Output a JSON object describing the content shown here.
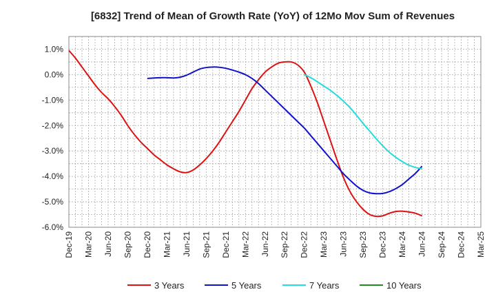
{
  "chart_data": {
    "type": "line",
    "title": "[6832]  Trend of Mean of Growth Rate (YoY) of 12Mo Mov Sum of Revenues",
    "xlabel": "",
    "ylabel": "",
    "ylim": [
      -6.0,
      1.5
    ],
    "yticks": [
      "1.0%",
      "0.0%",
      "-1.0%",
      "-2.0%",
      "-3.0%",
      "-4.0%",
      "-5.0%",
      "-6.0%"
    ],
    "ytick_values": [
      1.0,
      0.0,
      -1.0,
      -2.0,
      -3.0,
      -4.0,
      -5.0,
      -6.0
    ],
    "xticks": [
      "Dec-19",
      "Mar-20",
      "Jun-20",
      "Sep-20",
      "Dec-20",
      "Mar-21",
      "Jun-21",
      "Sep-21",
      "Dec-21",
      "Mar-22",
      "Jun-22",
      "Sep-22",
      "Dec-22",
      "Mar-23",
      "Jun-23",
      "Sep-23",
      "Dec-23",
      "Mar-24",
      "Jun-24",
      "Sep-24",
      "Dec-24",
      "Mar-25"
    ],
    "x_months_total": 63,
    "grid": true,
    "legend_position": "bottom",
    "series": [
      {
        "name": "3 Years",
        "color": "#dd1111",
        "points": [
          [
            0,
            0.95
          ],
          [
            1,
            0.65
          ],
          [
            2,
            0.3
          ],
          [
            3,
            -0.05
          ],
          [
            4,
            -0.4
          ],
          [
            5,
            -0.7
          ],
          [
            6,
            -0.95
          ],
          [
            7,
            -1.25
          ],
          [
            8,
            -1.6
          ],
          [
            9,
            -2.0
          ],
          [
            10,
            -2.35
          ],
          [
            11,
            -2.65
          ],
          [
            12,
            -2.9
          ],
          [
            13,
            -3.15
          ],
          [
            14,
            -3.35
          ],
          [
            15,
            -3.55
          ],
          [
            16,
            -3.7
          ],
          [
            17,
            -3.82
          ],
          [
            18,
            -3.85
          ],
          [
            19,
            -3.75
          ],
          [
            20,
            -3.55
          ],
          [
            21,
            -3.3
          ],
          [
            22,
            -3.0
          ],
          [
            23,
            -2.65
          ],
          [
            24,
            -2.25
          ],
          [
            25,
            -1.85
          ],
          [
            26,
            -1.45
          ],
          [
            27,
            -1.0
          ],
          [
            28,
            -0.55
          ],
          [
            29,
            -0.2
          ],
          [
            30,
            0.1
          ],
          [
            31,
            0.3
          ],
          [
            32,
            0.45
          ],
          [
            33,
            0.5
          ],
          [
            34,
            0.5
          ],
          [
            35,
            0.38
          ],
          [
            36,
            0.1
          ],
          [
            37,
            -0.45
          ],
          [
            38,
            -1.1
          ],
          [
            39,
            -1.85
          ],
          [
            40,
            -2.6
          ],
          [
            41,
            -3.35
          ],
          [
            42,
            -4.05
          ],
          [
            43,
            -4.6
          ],
          [
            44,
            -5.0
          ],
          [
            45,
            -5.3
          ],
          [
            46,
            -5.5
          ],
          [
            47,
            -5.57
          ],
          [
            48,
            -5.55
          ],
          [
            49,
            -5.45
          ],
          [
            50,
            -5.38
          ],
          [
            51,
            -5.37
          ],
          [
            52,
            -5.4
          ],
          [
            53,
            -5.45
          ],
          [
            54,
            -5.55
          ]
        ]
      },
      {
        "name": "5 Years",
        "color": "#1111cc",
        "points": [
          [
            12,
            -0.15
          ],
          [
            13,
            -0.13
          ],
          [
            14,
            -0.12
          ],
          [
            15,
            -0.12
          ],
          [
            16,
            -0.13
          ],
          [
            17,
            -0.1
          ],
          [
            18,
            -0.02
          ],
          [
            19,
            0.1
          ],
          [
            20,
            0.22
          ],
          [
            21,
            0.28
          ],
          [
            22,
            0.3
          ],
          [
            23,
            0.29
          ],
          [
            24,
            0.25
          ],
          [
            25,
            0.18
          ],
          [
            26,
            0.1
          ],
          [
            27,
            0.0
          ],
          [
            28,
            -0.15
          ],
          [
            29,
            -0.35
          ],
          [
            30,
            -0.6
          ],
          [
            31,
            -0.85
          ],
          [
            32,
            -1.1
          ],
          [
            33,
            -1.35
          ],
          [
            34,
            -1.6
          ],
          [
            35,
            -1.85
          ],
          [
            36,
            -2.1
          ],
          [
            37,
            -2.4
          ],
          [
            38,
            -2.7
          ],
          [
            39,
            -3.0
          ],
          [
            40,
            -3.3
          ],
          [
            41,
            -3.6
          ],
          [
            42,
            -3.9
          ],
          [
            43,
            -4.15
          ],
          [
            44,
            -4.38
          ],
          [
            45,
            -4.55
          ],
          [
            46,
            -4.65
          ],
          [
            47,
            -4.68
          ],
          [
            48,
            -4.67
          ],
          [
            49,
            -4.6
          ],
          [
            50,
            -4.48
          ],
          [
            51,
            -4.32
          ],
          [
            52,
            -4.1
          ],
          [
            53,
            -3.88
          ],
          [
            54,
            -3.6
          ]
        ]
      },
      {
        "name": "7 Years",
        "color": "#22dddd",
        "points": [
          [
            36,
            0.0
          ],
          [
            37,
            -0.12
          ],
          [
            38,
            -0.28
          ],
          [
            39,
            -0.45
          ],
          [
            40,
            -0.62
          ],
          [
            41,
            -0.82
          ],
          [
            42,
            -1.05
          ],
          [
            43,
            -1.3
          ],
          [
            44,
            -1.6
          ],
          [
            45,
            -1.92
          ],
          [
            46,
            -2.22
          ],
          [
            47,
            -2.52
          ],
          [
            48,
            -2.8
          ],
          [
            49,
            -3.05
          ],
          [
            50,
            -3.25
          ],
          [
            51,
            -3.42
          ],
          [
            52,
            -3.56
          ],
          [
            53,
            -3.65
          ],
          [
            54,
            -3.7
          ]
        ]
      },
      {
        "name": "10 Years",
        "color": "#228822",
        "points": []
      }
    ]
  }
}
